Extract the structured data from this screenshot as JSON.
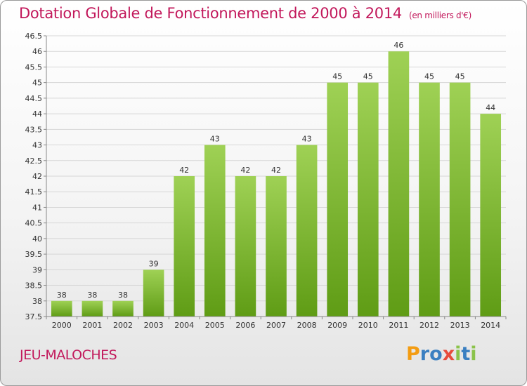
{
  "header": {
    "title": "Dotation Globale de Fonctionnement de 2000 à 2014",
    "subtitle": "(en milliers d'€)"
  },
  "footer": {
    "place": "JEU-MALOCHES",
    "logo_letters": [
      "P",
      "r",
      "o",
      "x",
      "i",
      "t",
      "i"
    ],
    "logo_colors": [
      "#f39c12",
      "#3a7fc1",
      "#3a7fc1",
      "#e74c3c",
      "#8bc34a",
      "#3a7fc1",
      "#8bc34a"
    ]
  },
  "chart_data": {
    "type": "bar",
    "categories": [
      "2000",
      "2001",
      "2002",
      "2003",
      "2004",
      "2005",
      "2006",
      "2007",
      "2008",
      "2009",
      "2010",
      "2011",
      "2012",
      "2013",
      "2014"
    ],
    "values": [
      38,
      38,
      38,
      39,
      42,
      43,
      42,
      42,
      43,
      45,
      45,
      46,
      45,
      45,
      44
    ],
    "ylim": [
      37.5,
      46.5
    ],
    "yticks": [
      37.5,
      38,
      38.5,
      39,
      39.5,
      40,
      40.5,
      41,
      41.5,
      42,
      42.5,
      43,
      43.5,
      44,
      44.5,
      45,
      45.5,
      46,
      46.5
    ],
    "grid": true,
    "bar_color_top": "#9fd155",
    "bar_color_bottom": "#5f9c15"
  }
}
